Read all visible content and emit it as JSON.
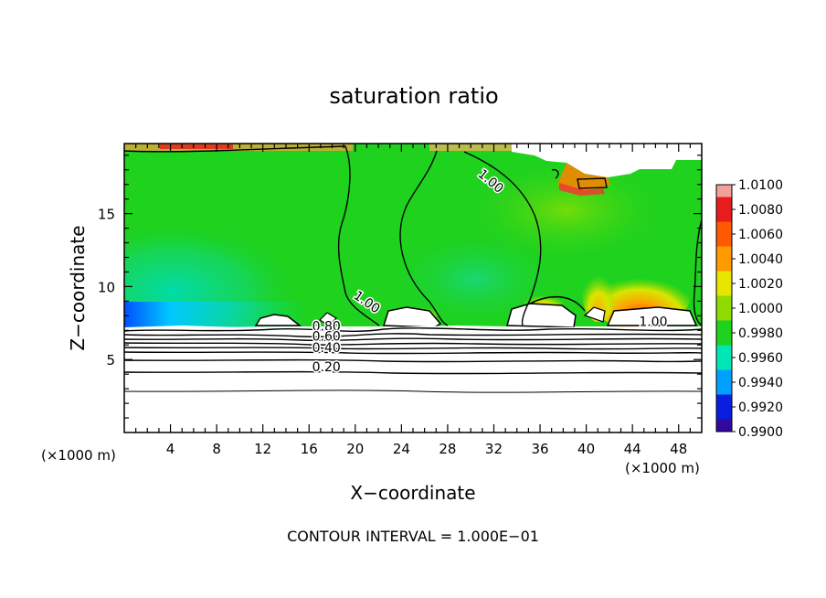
{
  "chart_data": {
    "type": "heatmap",
    "title": "saturation ratio",
    "xlabel": "X−coordinate",
    "ylabel": "Z−coordinate",
    "x_unit_left": "(×1000 m)",
    "x_unit_right": "(×1000 m)",
    "xlim": [
      0,
      50
    ],
    "ylim": [
      0,
      19.8
    ],
    "x_ticks": [
      4,
      8,
      12,
      16,
      20,
      24,
      28,
      32,
      36,
      40,
      44,
      48
    ],
    "y_ticks": [
      5,
      10,
      15
    ],
    "footer": "CONTOUR INTERVAL = 1.000E−01",
    "colorbar": {
      "levels": [
        "1.0100",
        "1.0080",
        "1.0060",
        "1.0040",
        "1.0020",
        "1.0000",
        "0.9980",
        "0.9960",
        "0.9940",
        "0.9920",
        "0.9900"
      ],
      "colors": [
        "#f4a09a",
        "#e81c1c",
        "#ff5a00",
        "#ff9a00",
        "#e6e600",
        "#8edc00",
        "#1ed21e",
        "#00e6b4",
        "#00a0ff",
        "#0a1ee0",
        "#300aa0",
        "#7a1ea0"
      ]
    },
    "contour_labels": [
      {
        "text": "1.00",
        "x": 31.5,
        "z": 17.0
      },
      {
        "text": "1.00",
        "x": 20.8,
        "z": 8.7
      },
      {
        "text": "1.00",
        "x": 45.8,
        "z": 7.3
      },
      {
        "text": "0.80",
        "x": 17.5,
        "z": 7.0
      },
      {
        "text": "0.60",
        "x": 17.5,
        "z": 6.3
      },
      {
        "text": "0.40",
        "x": 17.5,
        "z": 5.5
      },
      {
        "text": "0.20",
        "x": 17.5,
        "z": 4.2
      }
    ],
    "contour_levels": [
      0.1,
      0.2,
      0.3,
      0.4,
      0.5,
      0.6,
      0.7,
      0.8,
      0.9,
      1.0
    ],
    "cloud_regions": [
      {
        "x": [
          12.0,
          15.5
        ],
        "z": [
          7.3,
          8.0
        ]
      },
      {
        "x": [
          22.5,
          27.0
        ],
        "z": [
          7.4,
          8.8
        ]
      },
      {
        "x": [
          34.0,
          39.0
        ],
        "z": [
          7.4,
          8.6
        ]
      },
      {
        "x": [
          42.0,
          49.0
        ],
        "z": [
          7.4,
          8.5
        ]
      },
      {
        "x": [
          35.0,
          46.0
        ],
        "z": [
          17.5,
          19.8
        ]
      }
    ]
  }
}
